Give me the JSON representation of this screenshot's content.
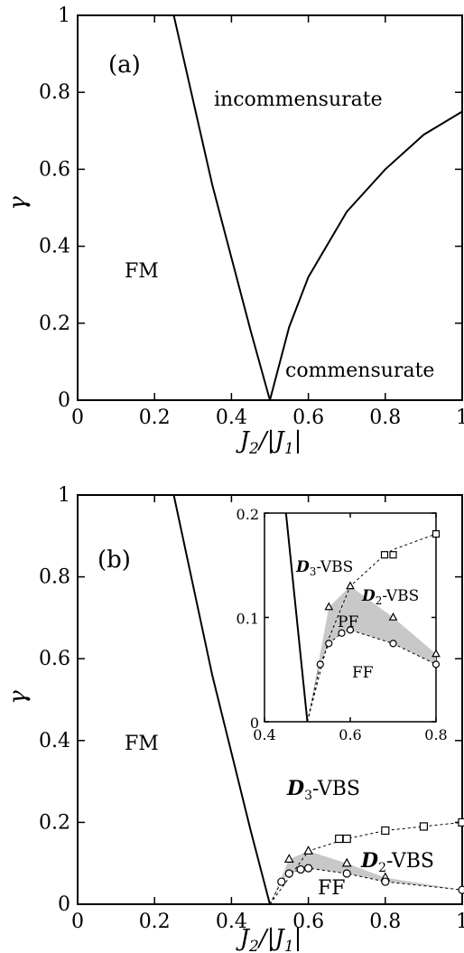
{
  "chart_data": [
    {
      "type": "line",
      "panel_label": "(a)",
      "xlabel": "J2/|J1|",
      "ylabel": "γ",
      "xlim": [
        0,
        1
      ],
      "ylim": [
        0,
        1
      ],
      "xticks": [
        "0",
        "0.2",
        "0.4",
        "0.6",
        "0.8",
        "1"
      ],
      "yticks": [
        "0",
        "0.2",
        "0.4",
        "0.6",
        "0.8",
        "1"
      ],
      "region_labels": [
        "incommensurate",
        "FM",
        "commensurate"
      ],
      "series": [
        {
          "x": [
            0.25,
            0.3,
            0.35,
            0.4,
            0.45,
            0.5
          ],
          "y": [
            1.0,
            0.78,
            0.56,
            0.37,
            0.18,
            0.0
          ]
        },
        {
          "x": [
            0.5,
            0.55,
            0.6,
            0.7,
            0.8,
            0.9,
            1.0
          ],
          "y": [
            0.0,
            0.19,
            0.32,
            0.49,
            0.6,
            0.69,
            0.75
          ]
        }
      ]
    },
    {
      "type": "line",
      "panel_label": "(b)",
      "xlabel": "J2/|J1|",
      "ylabel": "γ",
      "xlim": [
        0,
        1
      ],
      "ylim": [
        0,
        1
      ],
      "xticks": [
        "0",
        "0.2",
        "0.4",
        "0.6",
        "0.8",
        "1"
      ],
      "yticks": [
        "0",
        "0.2",
        "0.4",
        "0.6",
        "0.8",
        "1"
      ],
      "region_labels": [
        "FM",
        "D3-VBS",
        "D2-VBS",
        "FF"
      ],
      "boundary": {
        "x": [
          0.25,
          0.3,
          0.35,
          0.4,
          0.45,
          0.5
        ],
        "y": [
          1.0,
          0.78,
          0.56,
          0.37,
          0.18,
          0.0
        ]
      },
      "squares": {
        "x": [
          0.7,
          0.8,
          0.9,
          1.0,
          0.68
        ],
        "y": [
          0.16,
          0.18,
          0.19,
          0.2,
          0.16
        ]
      },
      "triangles": {
        "x": [
          0.55,
          0.6,
          0.7,
          0.8
        ],
        "y": [
          0.11,
          0.13,
          0.1,
          0.065
        ]
      },
      "circles": {
        "x": [
          0.53,
          0.55,
          0.58,
          0.6,
          0.7,
          0.8,
          1.0
        ],
        "y": [
          0.055,
          0.075,
          0.085,
          0.088,
          0.075,
          0.055,
          0.035
        ]
      },
      "inset": {
        "xlim": [
          0.4,
          0.8
        ],
        "ylim": [
          0,
          0.2
        ],
        "xticks": [
          "0.4",
          "0.6",
          "0.8"
        ],
        "yticks": [
          "0",
          "0.1",
          "0.2"
        ],
        "region_labels": [
          "D3-VBS",
          "D2-VBS",
          "PF",
          "FF"
        ]
      }
    }
  ]
}
